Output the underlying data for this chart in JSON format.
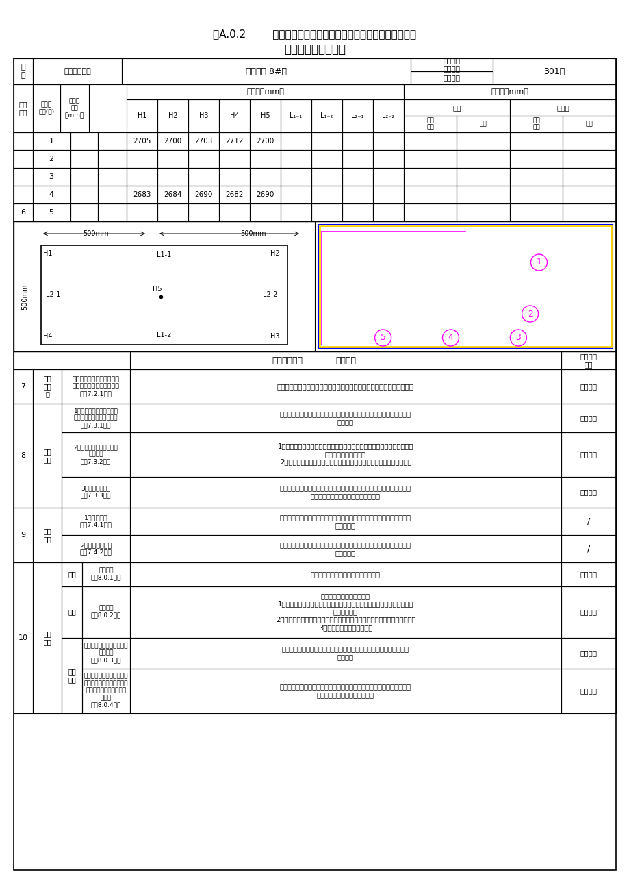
{
  "title_line1": "表A.0.2        室内空间尺寸、护栏和扶手、玻璃安装、橱柜工程、",
  "title_line2": "防水工程验收记录表",
  "project_name": "惠民花园 8#楼",
  "verify_dept": "验收部位\n（户号）",
  "verify_value": "301室",
  "calc_value": "计算值（mm）",
  "room_data": [
    {
      "id": "1",
      "H1": "2705",
      "H2": "2700",
      "H3": "2703",
      "H4": "2712",
      "H5": "2700"
    },
    {
      "id": "2"
    },
    {
      "id": "3"
    },
    {
      "id": "4",
      "H1": "2683",
      "H2": "2684",
      "H3": "2690",
      "H4": "2682",
      "H5": "2690"
    },
    {
      "id": "5"
    }
  ],
  "row6_label": "6",
  "check_rows": [
    {
      "seq": "7",
      "item_main": "护栏\n和扶\n手",
      "item_sub": "护栏和扶手的造型、尺寸、\n高度、栏杆间距和安装位置\n（第7.2.1条）",
      "requirement": "护栏高度、栏杆间距、安装位置必须符合设计要求。护栏安装必须牢固。",
      "result": "符合要求"
    },
    {
      "seq": "8",
      "item_main": "玻璃\n安装",
      "item_sub_list": [
        "1、玻璃的品种、规格、尺\n寸、色彩、图案和涂膜朝向\n（第7.3.1条）",
        "2、落地门窗、玻璃隔断的\n安全措施\n（第7.3.2条）",
        "3、玻璃观感质量\n（第7.3.3条）"
      ],
      "requirement_list": [
        "玻璃的品种、规格、尺寸、色彩、图案和涂膜朝向应符合设计和相应标准\n的要求。",
        "1、落地门窗、玻璃隔断等易受人体或物体碰撞的玻璃，应加设护栏或在视\n线高度设置警示标志。\n2、碰撞后可能发生高处人体或玻璃坠落的部位，必须设置可靠的护栏。",
        "安装后的玻璃应平整，不应有裂缝、划伤和松动。中空玻璃内外表面应洁\n净，玻璃中空内不应有灰尘和水蒸气。"
      ],
      "result_list": [
        "符合要求",
        "符合要求",
        "符合要求"
      ]
    },
    {
      "seq": "9",
      "item_main": "橱柜\n工程",
      "item_sub_list": [
        "1、橱柜安装\n（第7.4.1条）",
        "2、橱柜观感质量\n（第7.4.2条）"
      ],
      "requirement_list": [
        "橱柜安装位置、固定方法应符合设计要求，且安装必须牢固。配件齐全，\n开启方便。",
        "橱柜表面平整、洁净、色泽一致、无裂缝、翘曲及损坏。橱柜裁口顺直，\n拼缝严密。"
      ],
      "result_list": [
        "/",
        "/"
      ]
    },
    {
      "seq": "10",
      "item_main": "防水\n工程",
      "item_main2_list": [
        "外墙",
        "外窗",
        "防水\n地面"
      ],
      "item_sub_list": [
        "外墙防水\n（第8.0.1条）",
        "外窗防水\n（第8.0.2条）",
        "厨卫间、开放式阳台等地面\n防水效果\n（第8.0.3条）",
        "厨浴间、厨房和有排水（或\n其它液体）要求的建筑地面\n面层与相连接各类面层的\n标高差\n（第8.0.4条）"
      ],
      "requirement_list": [
        "工程竣工时，墙面不应有渗漏和缺陷。",
        "外窗防水应符合下列要求：\n1、建筑外墙金属窗、塑料窗水密性、气密性应由经备案的检测单位进行现\n场抽查合格。\n2、门窗框与墙体之间采用密封胶密封。密封胶表面应光滑、顺直，无裂缝。\n3、外窗及墙外不应有渗漏。",
        "厨卫间、开放式阳台等有防水要求的楼地面不得有渗漏和积水现象，排\n水畅通。",
        "厨浴间、厨房和有排水（或其它液体）要求的建筑地面面层与相连接各类\n面层的标高差应符合设计要求。"
      ],
      "result_list": [
        "符合要求",
        "符合要求",
        "符合要求",
        "符合要求"
      ]
    }
  ]
}
